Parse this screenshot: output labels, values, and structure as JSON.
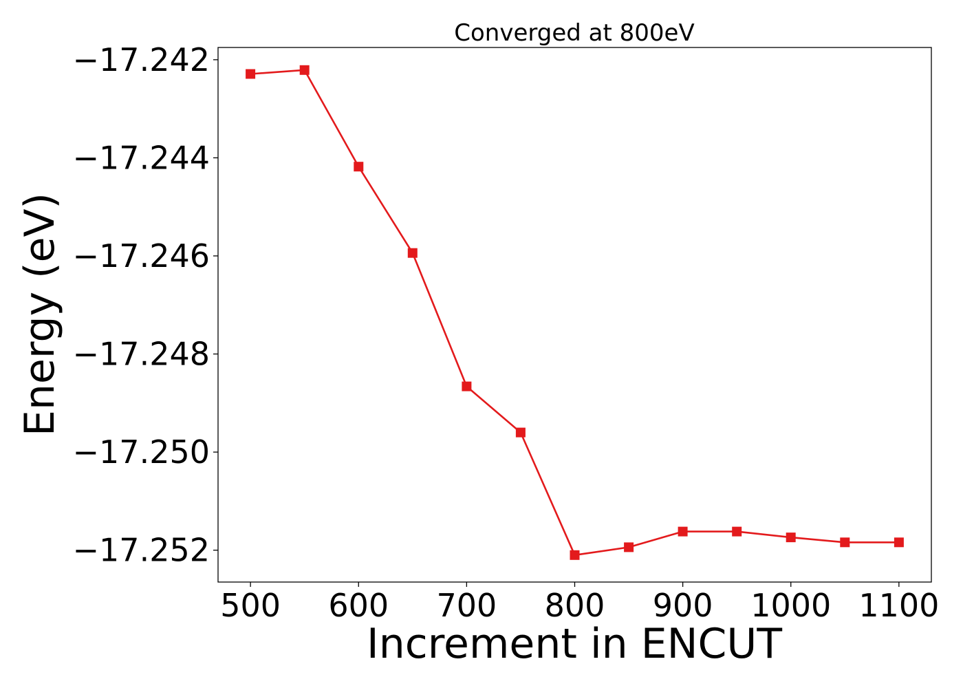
{
  "chart_data": {
    "type": "line",
    "title": "Converged at 800eV",
    "xlabel": "Increment in ENCUT",
    "ylabel": "Energy (eV)",
    "xlim": [
      470,
      1130
    ],
    "ylim": [
      -17.25265,
      -17.24175
    ],
    "x_ticks": [
      500,
      600,
      700,
      800,
      900,
      1000,
      1100
    ],
    "x_tick_labels": [
      "500",
      "600",
      "700",
      "800",
      "900",
      "1000",
      "1100"
    ],
    "y_ticks": [
      -17.242,
      -17.244,
      -17.246,
      -17.248,
      -17.25,
      -17.252
    ],
    "y_tick_labels": [
      "−17.242",
      "−17.244",
      "−17.246",
      "−17.248",
      "−17.250",
      "−17.252"
    ],
    "grid": false,
    "series": [
      {
        "color": "#e31a1c",
        "marker": "square",
        "x": [
          500,
          550,
          600,
          650,
          700,
          750,
          800,
          850,
          900,
          950,
          1000,
          1050,
          1100
        ],
        "y": [
          -17.24229,
          -17.24221,
          -17.24418,
          -17.24594,
          -17.24866,
          -17.2496,
          -17.2521,
          -17.25194,
          -17.25162,
          -17.25162,
          -17.25174,
          -17.25184,
          -17.25184
        ]
      }
    ]
  }
}
